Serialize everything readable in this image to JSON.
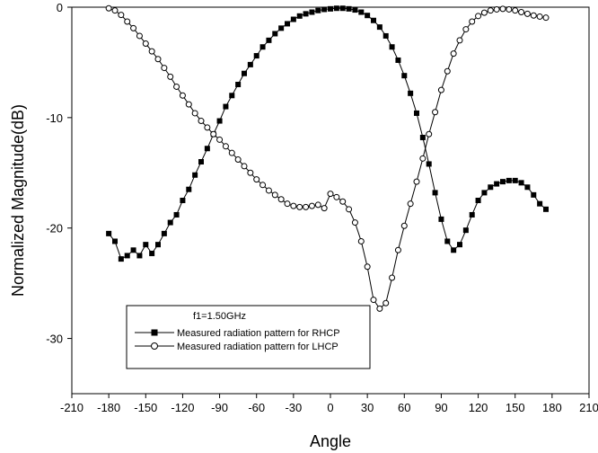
{
  "chart_data": {
    "type": "scatter",
    "title": "",
    "xlabel": "Angle",
    "ylabel": "Normalized Magnitude(dB)",
    "xlim": [
      -210,
      210
    ],
    "ylim": [
      -35,
      0
    ],
    "xticks": [
      -210,
      -180,
      -150,
      -120,
      -90,
      -60,
      -30,
      0,
      30,
      60,
      90,
      120,
      150,
      180,
      210
    ],
    "yticks": [
      0,
      -10,
      -20,
      -30
    ],
    "grid": false,
    "legend": {
      "placement": "bottom-left",
      "title": "f1=1.50GHz",
      "entries": [
        "Measured radiation pattern for RHCP",
        "Measured radiation pattern for LHCP"
      ]
    },
    "series": [
      {
        "name": "Measured radiation pattern for RHCP",
        "marker": "filled-square",
        "color": "#000000",
        "x": [
          -180,
          -175,
          -170,
          -165,
          -160,
          -155,
          -150,
          -145,
          -140,
          -135,
          -130,
          -125,
          -120,
          -115,
          -110,
          -105,
          -100,
          -95,
          -90,
          -85,
          -80,
          -75,
          -70,
          -65,
          -60,
          -55,
          -50,
          -45,
          -40,
          -35,
          -30,
          -25,
          -20,
          -15,
          -10,
          -5,
          0,
          5,
          10,
          15,
          20,
          25,
          30,
          35,
          40,
          45,
          50,
          55,
          60,
          65,
          70,
          75,
          80,
          85,
          90,
          95,
          100,
          105,
          110,
          115,
          120,
          125,
          130,
          135,
          140,
          145,
          150,
          155,
          160,
          165,
          170,
          175
        ],
        "y": [
          -20.5,
          -21.2,
          -22.8,
          -22.5,
          -22.0,
          -22.5,
          -21.5,
          -22.3,
          -21.5,
          -20.5,
          -19.5,
          -18.8,
          -17.5,
          -16.5,
          -15.2,
          -14.0,
          -12.8,
          -11.5,
          -10.3,
          -9.0,
          -8.0,
          -7.0,
          -6.0,
          -5.2,
          -4.4,
          -3.6,
          -3.0,
          -2.4,
          -1.9,
          -1.5,
          -1.1,
          -0.8,
          -0.6,
          -0.45,
          -0.3,
          -0.2,
          -0.15,
          -0.1,
          -0.1,
          -0.15,
          -0.25,
          -0.45,
          -0.75,
          -1.2,
          -1.8,
          -2.6,
          -3.6,
          -4.8,
          -6.2,
          -7.8,
          -9.6,
          -11.8,
          -14.2,
          -16.8,
          -19.2,
          -21.2,
          -22.0,
          -21.5,
          -20.2,
          -18.8,
          -17.5,
          -16.8,
          -16.3,
          -16.0,
          -15.8,
          -15.7,
          -15.7,
          -15.9,
          -16.3,
          -17.0,
          -17.8,
          -18.3
        ]
      },
      {
        "name": "Measured radiation pattern for LHCP",
        "marker": "open-circle",
        "color": "#000000",
        "x": [
          -180,
          -175,
          -170,
          -165,
          -160,
          -155,
          -150,
          -145,
          -140,
          -135,
          -130,
          -125,
          -120,
          -115,
          -110,
          -105,
          -100,
          -95,
          -90,
          -85,
          -80,
          -75,
          -70,
          -65,
          -60,
          -55,
          -50,
          -45,
          -40,
          -35,
          -30,
          -25,
          -20,
          -15,
          -10,
          -5,
          0,
          5,
          10,
          15,
          20,
          25,
          30,
          35,
          40,
          45,
          50,
          55,
          60,
          65,
          70,
          75,
          80,
          85,
          90,
          95,
          100,
          105,
          110,
          115,
          120,
          125,
          130,
          135,
          140,
          145,
          150,
          155,
          160,
          165,
          170,
          175
        ],
        "y": [
          -0.1,
          -0.3,
          -0.7,
          -1.3,
          -1.9,
          -2.6,
          -3.3,
          -4.0,
          -4.7,
          -5.5,
          -6.3,
          -7.2,
          -8.0,
          -8.8,
          -9.6,
          -10.3,
          -10.9,
          -11.5,
          -12.0,
          -12.6,
          -13.2,
          -13.8,
          -14.4,
          -15.0,
          -15.6,
          -16.1,
          -16.6,
          -17.0,
          -17.4,
          -17.8,
          -18.0,
          -18.1,
          -18.1,
          -18.0,
          -17.9,
          -18.2,
          -16.9,
          -17.2,
          -17.6,
          -18.3,
          -19.5,
          -21.2,
          -23.5,
          -26.5,
          -27.3,
          -26.8,
          -24.5,
          -22.0,
          -19.8,
          -17.8,
          -15.8,
          -13.7,
          -11.5,
          -9.5,
          -7.5,
          -5.8,
          -4.2,
          -3.0,
          -2.0,
          -1.3,
          -0.8,
          -0.5,
          -0.3,
          -0.2,
          -0.15,
          -0.2,
          -0.3,
          -0.45,
          -0.6,
          -0.75,
          -0.85,
          -0.95
        ]
      }
    ]
  }
}
